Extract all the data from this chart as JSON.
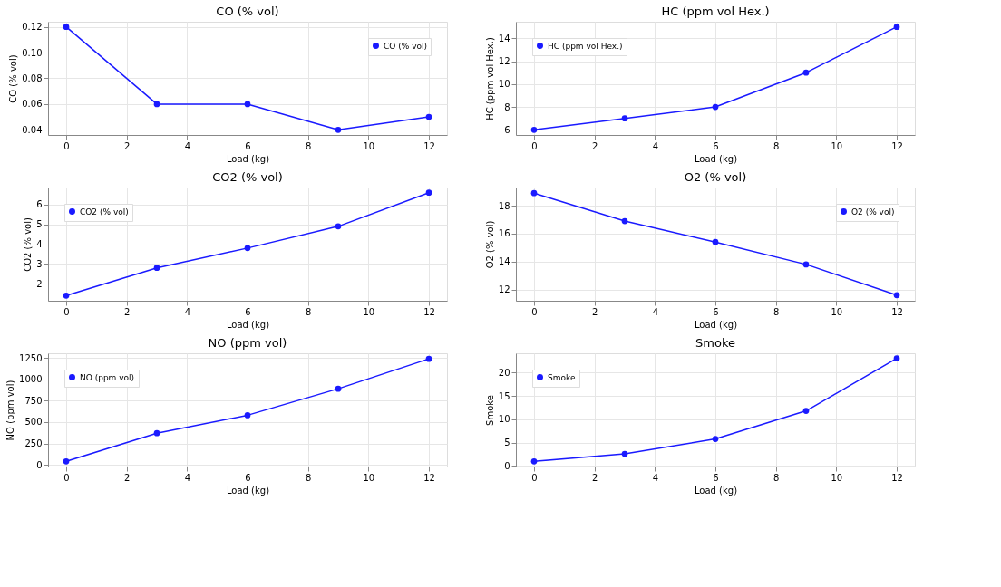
{
  "chart_data": [
    {
      "type": "line",
      "title": "CO (% vol)",
      "xlabel": "Load (kg)",
      "ylabel": "CO (% vol)",
      "x": [
        0,
        3,
        6,
        9,
        12
      ],
      "series": [
        {
          "name": "CO (% vol)",
          "color": "#1a1aff",
          "values": [
            0.12,
            0.06,
            0.06,
            0.04,
            0.05
          ]
        }
      ],
      "xlim": [
        -0.6,
        12.6
      ],
      "xticks": [
        0,
        2,
        4,
        6,
        8,
        10,
        12
      ],
      "ylim": [
        0.036,
        0.124
      ],
      "yticks": [
        {
          "value": 0.04,
          "label": "0.04"
        },
        {
          "value": 0.06,
          "label": "0.06"
        },
        {
          "value": 0.08,
          "label": "0.08"
        },
        {
          "value": 0.1,
          "label": "0.10"
        },
        {
          "value": 0.12,
          "label": "0.12"
        }
      ],
      "grid": true,
      "legend": "top right",
      "marker": "circle"
    },
    {
      "type": "line",
      "title": "HC (ppm vol Hex.)",
      "xlabel": "Load (kg)",
      "ylabel": "HC (ppm vol Hex.)",
      "x": [
        0,
        3,
        6,
        9,
        12
      ],
      "series": [
        {
          "name": "HC (ppm vol Hex.)",
          "color": "#1a1aff",
          "values": [
            6,
            7,
            8,
            11,
            15
          ]
        }
      ],
      "xlim": [
        -0.6,
        12.6
      ],
      "xticks": [
        0,
        2,
        4,
        6,
        8,
        10,
        12
      ],
      "ylim": [
        5.55,
        15.45
      ],
      "yticks": [
        6,
        8,
        10,
        12,
        14
      ],
      "grid": true,
      "legend": "top left",
      "marker": "circle"
    },
    {
      "type": "line",
      "title": "CO2 (% vol)",
      "xlabel": "Load (kg)",
      "ylabel": "CO2 (% vol)",
      "x": [
        0,
        3,
        6,
        9,
        12
      ],
      "series": [
        {
          "name": "CO2 (% vol)",
          "color": "#1a1aff",
          "values": [
            1.4,
            2.8,
            3.8,
            4.9,
            6.6
          ]
        }
      ],
      "xlim": [
        -0.6,
        12.6
      ],
      "xticks": [
        0,
        2,
        4,
        6,
        8,
        10,
        12
      ],
      "ylim": [
        1.14,
        6.86
      ],
      "yticks": [
        2,
        3,
        4,
        5,
        6
      ],
      "grid": true,
      "legend": "top left",
      "marker": "circle"
    },
    {
      "type": "line",
      "title": "O2 (% vol)",
      "xlabel": "Load (kg)",
      "ylabel": "O2 (% vol)",
      "x": [
        0,
        3,
        6,
        9,
        12
      ],
      "series": [
        {
          "name": "O2 (% vol)",
          "color": "#1a1aff",
          "values": [
            18.9,
            16.9,
            15.4,
            13.8,
            11.6
          ]
        }
      ],
      "xlim": [
        -0.6,
        12.6
      ],
      "xticks": [
        0,
        2,
        4,
        6,
        8,
        10,
        12
      ],
      "ylim": [
        11.2,
        19.3
      ],
      "yticks": [
        12,
        14,
        16,
        18
      ],
      "grid": true,
      "legend": "top right",
      "marker": "circle"
    },
    {
      "type": "line",
      "title": "NO (ppm vol)",
      "xlabel": "Load (kg)",
      "ylabel": "NO (ppm vol)",
      "x": [
        0,
        3,
        6,
        9,
        12
      ],
      "series": [
        {
          "name": "NO (ppm vol)",
          "color": "#1a1aff",
          "values": [
            40,
            370,
            580,
            890,
            1240
          ]
        }
      ],
      "xlim": [
        -0.6,
        12.6
      ],
      "xticks": [
        0,
        2,
        4,
        6,
        8,
        10,
        12
      ],
      "ylim": [
        -20,
        1305
      ],
      "yticks": [
        0,
        250,
        500,
        750,
        1000,
        1250
      ],
      "grid": true,
      "legend": "top left",
      "marker": "circle"
    },
    {
      "type": "line",
      "title": "Smoke",
      "xlabel": "Load (kg)",
      "ylabel": "Smoke",
      "x": [
        0,
        3,
        6,
        9,
        12
      ],
      "series": [
        {
          "name": "Smoke",
          "color": "#1a1aff",
          "values": [
            1,
            2.6,
            5.8,
            11.8,
            23
          ]
        }
      ],
      "xlim": [
        -0.6,
        12.6
      ],
      "xticks": [
        0,
        2,
        4,
        6,
        8,
        10,
        12
      ],
      "ylim": [
        -0.1,
        24.1
      ],
      "yticks": [
        0,
        5,
        10,
        15,
        20
      ],
      "grid": true,
      "legend": "top left",
      "marker": "circle"
    }
  ]
}
